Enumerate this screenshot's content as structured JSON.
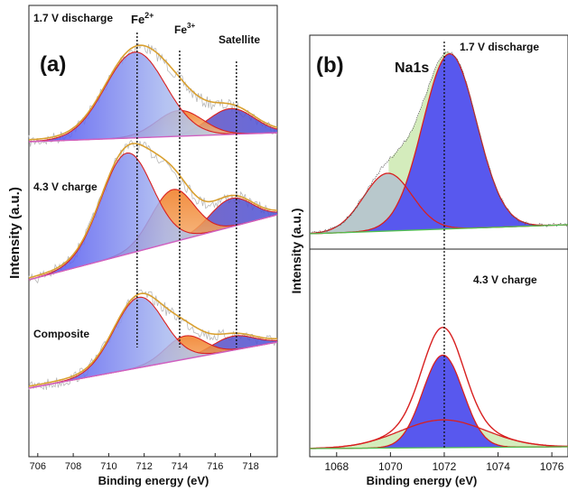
{
  "panel_a": {
    "panel_label": "(a)",
    "y_axis_label": "Intensity (a.u.)",
    "x_axis_label": "Binding energy (eV)",
    "x_ticks": [
      "706",
      "708",
      "710",
      "712",
      "714",
      "716",
      "718"
    ],
    "reference_lines": [
      {
        "energy": 711.6,
        "label_main": "Fe",
        "label_sup": "2+"
      },
      {
        "energy": 714.0,
        "label_main": "Fe",
        "label_sup": "3+"
      },
      {
        "energy": 717.2,
        "label_main": "Satellite",
        "label_sup": ""
      }
    ],
    "spectra": [
      {
        "label": "1.7 V discharge"
      },
      {
        "label": "4.3 V charge"
      },
      {
        "label": "Composite"
      }
    ]
  },
  "panel_b": {
    "panel_label": "(b)",
    "y_axis_label": "Intensity (a.u.)",
    "x_axis_label": "Binding energy (eV)",
    "element_label": "Na1s",
    "x_ticks": [
      "1068",
      "1070",
      "1072",
      "1074",
      "1076"
    ],
    "reference_line_energy": 1072.0,
    "spectra": [
      {
        "label": "1.7 V discharge"
      },
      {
        "label": "4.3 V charge"
      }
    ]
  },
  "colors": {
    "envelope_a": "#d9a030",
    "fe2_fill": "#5a5ae6",
    "fe3_fill": "#f08a2a",
    "satellite_fill": "#6a4ab0",
    "peak_outline": "#d82020",
    "raw_data": "#b8b8b8",
    "baseline": "#d060c0",
    "na_main_fill": "#5858ee",
    "na_side_fill": "#d4ecbc",
    "na_baseline": "#50c050"
  },
  "chart_data": [
    {
      "type": "area",
      "panel": "(a)",
      "title": "",
      "xlabel": "Binding energy (eV)",
      "ylabel": "Intensity (a.u.)",
      "xlim": [
        705.5,
        719.5
      ],
      "stacked_offsets": true,
      "series": [
        {
          "name": "1.7 V discharge",
          "components": [
            {
              "component": "Fe2+",
              "center": 711.5,
              "width": 1.7,
              "height": 1.0
            },
            {
              "component": "Fe3+",
              "center": 714.0,
              "width": 1.3,
              "height": 0.3
            },
            {
              "component": "Satellite",
              "center": 716.9,
              "width": 1.3,
              "height": 0.3
            }
          ]
        },
        {
          "name": "4.3 V charge",
          "components": [
            {
              "component": "Fe2+",
              "center": 711.0,
              "width": 1.45,
              "height": 1.0
            },
            {
              "component": "Fe3+",
              "center": 713.6,
              "width": 1.2,
              "height": 0.52
            },
            {
              "component": "Satellite",
              "center": 716.9,
              "width": 1.2,
              "height": 0.28
            }
          ]
        },
        {
          "name": "Composite",
          "components": [
            {
              "component": "Fe2+",
              "center": 711.7,
              "width": 1.4,
              "height": 1.0
            },
            {
              "component": "Fe3+",
              "center": 714.3,
              "width": 1.1,
              "height": 0.33
            },
            {
              "component": "Satellite",
              "center": 717.0,
              "width": 1.2,
              "height": 0.2
            }
          ]
        }
      ]
    },
    {
      "type": "area",
      "panel": "(b)",
      "title": "",
      "xlabel": "Binding energy (eV)",
      "ylabel": "Intensity (a.u.)",
      "xlim": [
        1067.0,
        1076.6
      ],
      "series": [
        {
          "name": "1.7 V discharge",
          "components": [
            {
              "component": "main",
              "center": 1072.2,
              "width": 1.0,
              "height": 1.0
            },
            {
              "component": "side",
              "center": 1069.9,
              "width": 0.9,
              "height": 0.33
            }
          ]
        },
        {
          "name": "4.3 V charge",
          "components": [
            {
              "component": "main",
              "center": 1071.95,
              "width": 0.75,
              "height": 0.5
            },
            {
              "component": "broad",
              "center": 1071.95,
              "width": 1.6,
              "height": 0.15
            }
          ]
        }
      ]
    }
  ]
}
